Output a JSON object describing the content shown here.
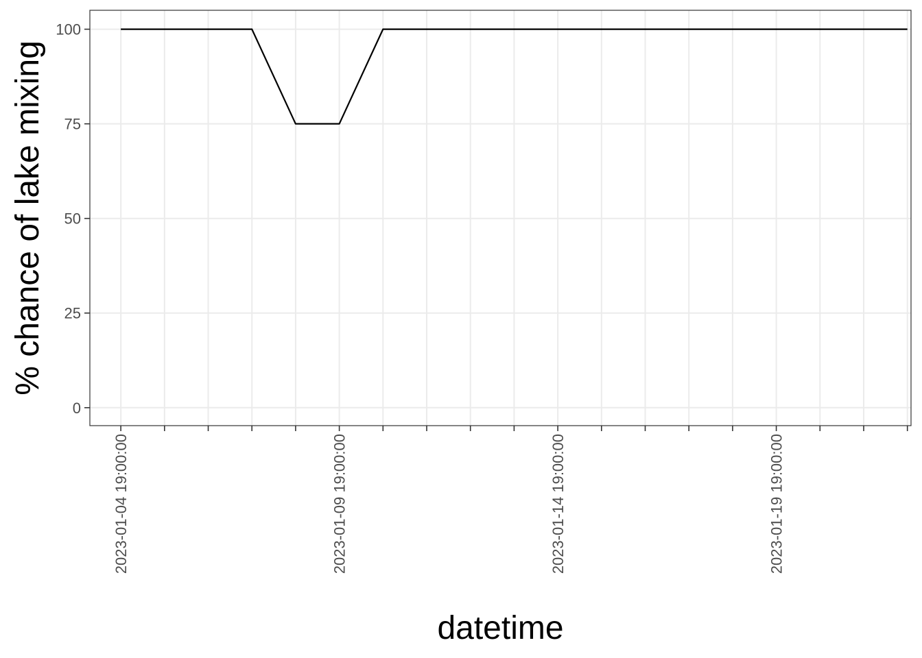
{
  "chart_data": {
    "type": "line",
    "title": "",
    "xlabel": "datetime",
    "ylabel": "% chance of lake mixing",
    "x": [
      "2023-01-04 19:00:00",
      "2023-01-05 19:00:00",
      "2023-01-06 19:00:00",
      "2023-01-07 19:00:00",
      "2023-01-08 19:00:00",
      "2023-01-09 19:00:00",
      "2023-01-10 19:00:00",
      "2023-01-11 19:00:00",
      "2023-01-12 19:00:00",
      "2023-01-13 19:00:00",
      "2023-01-14 19:00:00",
      "2023-01-15 19:00:00",
      "2023-01-16 19:00:00",
      "2023-01-17 19:00:00",
      "2023-01-18 19:00:00",
      "2023-01-19 19:00:00",
      "2023-01-20 19:00:00",
      "2023-01-21 19:00:00",
      "2023-01-22 19:00:00"
    ],
    "series": [
      {
        "values": [
          100,
          100,
          100,
          100,
          75,
          75,
          100,
          100,
          100,
          100,
          100,
          100,
          100,
          100,
          100,
          100,
          100,
          100,
          100
        ],
        "color": "#000000"
      }
    ],
    "x_tick_labels": [
      "2023-01-04 19:00:00",
      "2023-01-09 19:00:00",
      "2023-01-14 19:00:00",
      "2023-01-19 19:00:00"
    ],
    "y_ticks": [
      0,
      25,
      50,
      75,
      100
    ],
    "ylim": [
      -4.75,
      105
    ],
    "xlim": [
      "2023-01-04 02:00:00",
      "2023-01-22 21:00:00"
    ],
    "grid": true,
    "legend": "none",
    "colors": {
      "panel_background": "#ffffff",
      "gridline": "#ebebeb",
      "border": "#333333",
      "line": "#000000",
      "tick_label": "#4d4d4d",
      "axis_title": "#000000"
    }
  }
}
